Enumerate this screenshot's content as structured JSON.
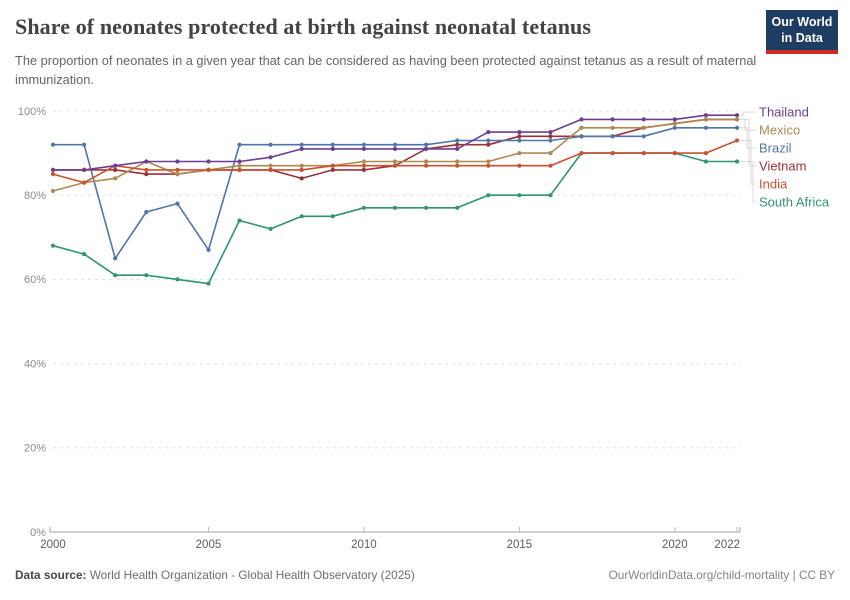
{
  "header": {
    "title": "Share of neonates protected at birth against neonatal tetanus",
    "subtitle": "The proportion of neonates in a given year that can be considered as having been protected against tetanus as a result of maternal immunization.",
    "logo": {
      "line1": "Our World",
      "line2": "in Data",
      "bg_color": "#1d3d63",
      "stripe_color": "#cf2b26"
    }
  },
  "chart_data": {
    "type": "line",
    "title": "Share of neonates protected at birth against neonatal tetanus",
    "xlabel": "",
    "ylabel": "",
    "x": [
      2000,
      2001,
      2002,
      2003,
      2004,
      2005,
      2006,
      2007,
      2008,
      2009,
      2010,
      2011,
      2012,
      2013,
      2014,
      2015,
      2016,
      2017,
      2018,
      2019,
      2020,
      2021,
      2022
    ],
    "xticks": [
      2000,
      2005,
      2010,
      2015,
      2020,
      2022
    ],
    "ylim": [
      0,
      100
    ],
    "yticks": [
      0,
      20,
      40,
      60,
      80,
      100
    ],
    "ytick_labels": [
      "0%",
      "20%",
      "40%",
      "60%",
      "80%",
      "100%"
    ],
    "grid": "horizontal-dashed",
    "legend_position": "right",
    "series": [
      {
        "name": "Thailand",
        "color": "#6d3e91",
        "values": [
          86,
          86,
          87,
          88,
          88,
          88,
          88,
          89,
          91,
          91,
          91,
          91,
          91,
          91,
          95,
          95,
          95,
          98,
          98,
          98,
          98,
          99,
          99
        ]
      },
      {
        "name": "Mexico",
        "color": "#ad8a51",
        "values": [
          81,
          83,
          84,
          88,
          85,
          86,
          87,
          87,
          87,
          87,
          88,
          88,
          88,
          88,
          88,
          90,
          90,
          96,
          96,
          96,
          97,
          98,
          98
        ]
      },
      {
        "name": "Brazil",
        "color": "#5074ac",
        "values": [
          92,
          92,
          65,
          76,
          78,
          67,
          92,
          92,
          92,
          92,
          92,
          92,
          92,
          93,
          93,
          93,
          93,
          94,
          94,
          94,
          96,
          96,
          96
        ]
      },
      {
        "name": "Vietnam",
        "color": "#9b3138",
        "values": [
          86,
          86,
          86,
          85,
          85,
          86,
          86,
          86,
          84,
          86,
          86,
          87,
          91,
          92,
          92,
          94,
          94,
          94,
          94,
          96,
          97,
          98,
          98
        ]
      },
      {
        "name": "India",
        "color": "#cb512f",
        "values": [
          85,
          83,
          87,
          86,
          86,
          86,
          86,
          86,
          86,
          87,
          87,
          87,
          87,
          87,
          87,
          87,
          87,
          90,
          90,
          90,
          90,
          90,
          93
        ]
      },
      {
        "name": "South Africa",
        "color": "#2f9572",
        "values": [
          68,
          66,
          61,
          61,
          60,
          59,
          74,
          72,
          75,
          75,
          77,
          77,
          77,
          77,
          80,
          80,
          80,
          90,
          90,
          90,
          90,
          88,
          88
        ]
      }
    ]
  },
  "footer": {
    "datasource_label": "Data source:",
    "datasource_text": " World Health Organization - Global Health Observatory (2025)",
    "link_text": "OurWorldinData.org/child-mortality",
    "separator": " | ",
    "license": "CC BY"
  }
}
